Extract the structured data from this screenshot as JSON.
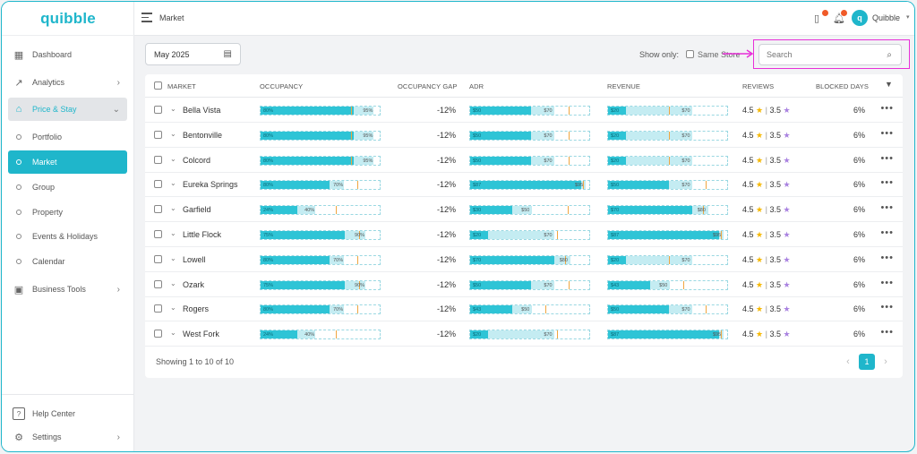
{
  "app": {
    "logo": "quibble"
  },
  "sidebar": {
    "items": [
      {
        "label": "Dashboard",
        "icon": "dashboard-icon"
      },
      {
        "label": "Analytics",
        "icon": "analytics-icon"
      },
      {
        "label": "Price & Stay",
        "icon": "price-stay-icon"
      },
      {
        "label": "Portfolio"
      },
      {
        "label": "Market"
      },
      {
        "label": "Group"
      },
      {
        "label": "Property"
      },
      {
        "label": "Events & Holidays"
      },
      {
        "label": "Calendar"
      },
      {
        "label": "Business Tools",
        "icon": "briefcase-icon"
      }
    ],
    "bottom": [
      {
        "label": "Help Center",
        "icon": "help-icon"
      },
      {
        "label": "Settings",
        "icon": "gear-icon"
      }
    ]
  },
  "header": {
    "title": "Market",
    "user_name": "Quibble"
  },
  "filters": {
    "date": "May 2025",
    "show_only": "Show only:",
    "same_store": "Same Store",
    "search_placeholder": "Search"
  },
  "table": {
    "columns": [
      "MARKET",
      "OCCUPANCY",
      "OCCUPANCY GAP",
      "ADR",
      "REVENUE",
      "REVIEWS",
      "BLOCKED DAYS"
    ],
    "rows": [
      {
        "market": "Bella Vista",
        "occ": {
          "a": "80%",
          "b": "95%",
          "fill": 0.78,
          "bg": 0.95,
          "mark": 0.76
        },
        "gap": "-12%",
        "adr": {
          "a": "$50",
          "b": "$70",
          "fill": 0.51,
          "bg": 0.71,
          "mark": 0.83
        },
        "rev": {
          "a": "$20",
          "b": "$70",
          "fill": 0.15,
          "bg": 0.71,
          "mark": 0.51
        },
        "rating": "4.5",
        "rating2": "3.5",
        "blocked": "6%"
      },
      {
        "market": "Bentonville",
        "occ": {
          "a": "80%",
          "b": "95%",
          "fill": 0.78,
          "bg": 0.95,
          "mark": 0.76
        },
        "gap": "-12%",
        "adr": {
          "a": "$50",
          "b": "$70",
          "fill": 0.51,
          "bg": 0.71,
          "mark": 0.83
        },
        "rev": {
          "a": "$20",
          "b": "$70",
          "fill": 0.15,
          "bg": 0.71,
          "mark": 0.51
        },
        "rating": "4.5",
        "rating2": "3.5",
        "blocked": "6%"
      },
      {
        "market": "Colcord",
        "occ": {
          "a": "80%",
          "b": "95%",
          "fill": 0.78,
          "bg": 0.95,
          "mark": 0.76
        },
        "gap": "-12%",
        "adr": {
          "a": "$50",
          "b": "$70",
          "fill": 0.51,
          "bg": 0.71,
          "mark": 0.83
        },
        "rev": {
          "a": "$20",
          "b": "$70",
          "fill": 0.15,
          "bg": 0.71,
          "mark": 0.51
        },
        "rating": "4.5",
        "rating2": "3.5",
        "blocked": "6%"
      },
      {
        "market": "Eureka Springs",
        "occ": {
          "a": "80%",
          "b": "70%",
          "fill": 0.58,
          "bg": 0.7,
          "mark": 0.81
        },
        "gap": "-12%",
        "adr": {
          "a": "$87",
          "b": "$95",
          "fill": 0.93,
          "bg": 0.97,
          "mark": 0.95
        },
        "rev": {
          "a": "$50",
          "b": "$70",
          "fill": 0.51,
          "bg": 0.71,
          "mark": 0.82
        },
        "rating": "4.5",
        "rating2": "3.5",
        "blocked": "6%"
      },
      {
        "market": "Garfield",
        "occ": {
          "a": "24%",
          "b": "40%",
          "fill": 0.31,
          "bg": 0.46,
          "mark": 0.63
        },
        "gap": "-12%",
        "adr": {
          "a": "$30",
          "b": "$50",
          "fill": 0.35,
          "bg": 0.52,
          "mark": 0.82
        },
        "rev": {
          "a": "$70",
          "b": "$80",
          "fill": 0.71,
          "bg": 0.84,
          "mark": 0.8
        },
        "rating": "4.5",
        "rating2": "3.5",
        "blocked": "6%"
      },
      {
        "market": "Little Flock",
        "occ": {
          "a": "75%",
          "b": "90%",
          "fill": 0.71,
          "bg": 0.88,
          "mark": 0.83
        },
        "gap": "-12%",
        "adr": {
          "a": "$20",
          "b": "$70",
          "fill": 0.15,
          "bg": 0.71,
          "mark": 0.73
        },
        "rev": {
          "a": "$87",
          "b": "$95",
          "fill": 0.93,
          "bg": 0.97,
          "mark": 0.95
        },
        "rating": "4.5",
        "rating2": "3.5",
        "blocked": "6%"
      },
      {
        "market": "Lowell",
        "occ": {
          "a": "80%",
          "b": "70%",
          "fill": 0.58,
          "bg": 0.7,
          "mark": 0.81
        },
        "gap": "-12%",
        "adr": {
          "a": "$70",
          "b": "$80",
          "fill": 0.71,
          "bg": 0.84,
          "mark": 0.8
        },
        "rev": {
          "a": "$20",
          "b": "$70",
          "fill": 0.15,
          "bg": 0.71,
          "mark": 0.51
        },
        "rating": "4.5",
        "rating2": "3.5",
        "blocked": "6%"
      },
      {
        "market": "Ozark",
        "occ": {
          "a": "75%",
          "b": "90%",
          "fill": 0.71,
          "bg": 0.88,
          "mark": 0.83
        },
        "gap": "-12%",
        "adr": {
          "a": "$50",
          "b": "$70",
          "fill": 0.51,
          "bg": 0.71,
          "mark": 0.83
        },
        "rev": {
          "a": "$43",
          "b": "$50",
          "fill": 0.35,
          "bg": 0.52,
          "mark": 0.63
        },
        "rating": "4.5",
        "rating2": "3.5",
        "blocked": "6%"
      },
      {
        "market": "Rogers",
        "occ": {
          "a": "80%",
          "b": "70%",
          "fill": 0.58,
          "bg": 0.7,
          "mark": 0.81
        },
        "gap": "-12%",
        "adr": {
          "a": "$43",
          "b": "$50",
          "fill": 0.35,
          "bg": 0.52,
          "mark": 0.63
        },
        "rev": {
          "a": "$50",
          "b": "$70",
          "fill": 0.51,
          "bg": 0.71,
          "mark": 0.82
        },
        "rating": "4.5",
        "rating2": "3.5",
        "blocked": "6%"
      },
      {
        "market": "West Fork",
        "occ": {
          "a": "24%",
          "b": "40%",
          "fill": 0.31,
          "bg": 0.46,
          "mark": 0.63
        },
        "gap": "-12%",
        "adr": {
          "a": "$20",
          "b": "$70",
          "fill": 0.15,
          "bg": 0.71,
          "mark": 0.73
        },
        "rev": {
          "a": "$87",
          "b": "$95",
          "fill": 0.93,
          "bg": 0.97,
          "mark": 0.95
        },
        "rating": "4.5",
        "rating2": "3.5",
        "blocked": "6%"
      }
    ],
    "footer": "Showing 1 to 10 of 10",
    "page": "1"
  },
  "colors": {
    "accent": "#1fb6cb",
    "bar_fill": "#2ec4d6",
    "bar_bg": "#c4ecf2",
    "marker": "#f0a640",
    "highlight": "#e830d8"
  }
}
